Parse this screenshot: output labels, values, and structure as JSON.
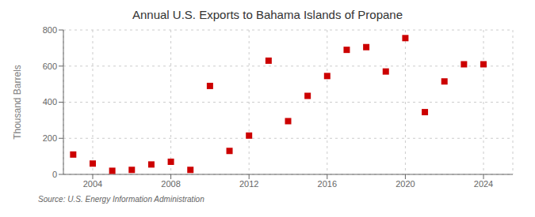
{
  "chart_data": {
    "type": "scatter",
    "title": "Annual U.S. Exports to Bahama Islands of Propane",
    "y_label": "Thousand Barrels",
    "annotations": [
      "Source: U.S. Energy Information Administration"
    ],
    "x": [
      2003,
      2004,
      2005,
      2006,
      2007,
      2008,
      2009,
      2010,
      2011,
      2012,
      2013,
      2014,
      2015,
      2016,
      2017,
      2018,
      2019,
      2020,
      2021,
      2022,
      2023,
      2024
    ],
    "values": [
      110,
      60,
      20,
      25,
      55,
      70,
      25,
      490,
      130,
      215,
      630,
      295,
      435,
      545,
      690,
      705,
      570,
      755,
      345,
      515,
      610,
      610
    ],
    "color": "#cc0000",
    "marker": "square",
    "xlim": [
      2002.5,
      2025.5
    ],
    "xticks": [
      2004,
      2008,
      2012,
      2016,
      2020,
      2024
    ],
    "ylim": [
      0,
      800
    ],
    "yticks": [
      0,
      200,
      400,
      600,
      800
    ],
    "grid": true
  }
}
